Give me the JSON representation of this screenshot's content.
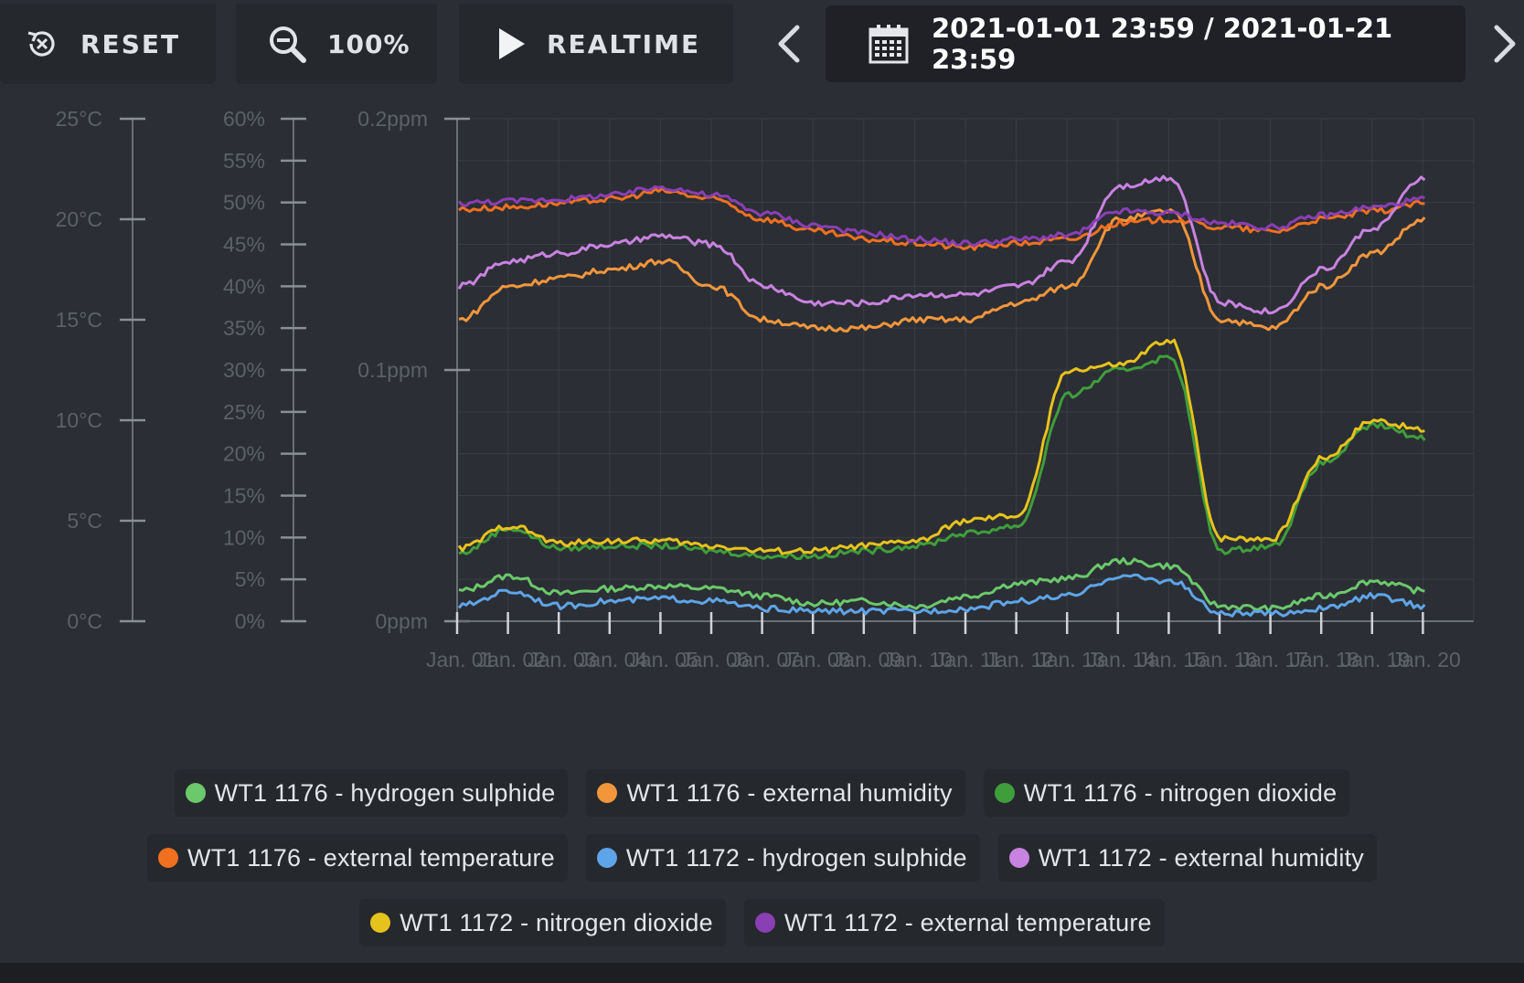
{
  "toolbar": {
    "reset_label": "RESET",
    "zoom_label": "100%",
    "realtime_label": "REALTIME",
    "date_range": "2021-01-01 23:59 / 2021-01-21 23:59"
  },
  "icons": {
    "reset": "reset-icon",
    "zoom": "zoom-out-icon",
    "play": "play-icon",
    "prev": "chevron-left-icon",
    "next": "chevron-right-icon",
    "calendar": "calendar-icon"
  },
  "chart_data": {
    "type": "line",
    "title": "",
    "grid": true,
    "legend_position": "bottom",
    "x": [
      "Jan. 01",
      "Jan. 02",
      "Jan. 03",
      "Jan. 04",
      "Jan. 05",
      "Jan. 06",
      "Jan. 07",
      "Jan. 08",
      "Jan. 09",
      "Jan. 10",
      "Jan. 11",
      "Jan. 12",
      "Jan. 13",
      "Jan. 14",
      "Jan. 15",
      "Jan. 16",
      "Jan. 17",
      "Jan. 18",
      "Jan. 19",
      "Jan. 20"
    ],
    "x_tick_labels": [
      "Jan. 01",
      "Jan. 02",
      "Jan. 03",
      "Jan. 04",
      "Jan. 05",
      "Jan. 06",
      "Jan. 07",
      "Jan. 08",
      "Jan. 09",
      "Jan. 10",
      "Jan. 11",
      "Jan. 12",
      "Jan. 13",
      "Jan. 14",
      "Jan. 15",
      "Jan. 16",
      "Jan. 17",
      "Jan. 18",
      "Jan. 19",
      "Jan. 20"
    ],
    "axes": [
      {
        "id": "temp",
        "unit": "°C",
        "ylim": [
          0,
          25
        ],
        "ticks": [
          "0°C",
          "5°C",
          "10°C",
          "15°C",
          "20°C",
          "25°C"
        ]
      },
      {
        "id": "humidity",
        "unit": "%",
        "ylim": [
          0,
          60
        ],
        "ticks": [
          "0%",
          "5%",
          "10%",
          "15%",
          "20%",
          "25%",
          "30%",
          "35%",
          "40%",
          "45%",
          "50%",
          "55%",
          "60%"
        ]
      },
      {
        "id": "ppm",
        "unit": "ppm",
        "ylim": [
          0,
          0.2
        ],
        "ticks": [
          "0ppm",
          "0.1ppm",
          "0.2ppm"
        ]
      }
    ],
    "series": [
      {
        "name": "WT1 1176 - hydrogen sulphide",
        "color": "#6bc86b",
        "axis": "ppm",
        "values": [
          0.012,
          0.018,
          0.011,
          0.013,
          0.014,
          0.013,
          0.01,
          0.007,
          0.008,
          0.006,
          0.01,
          0.015,
          0.017,
          0.024,
          0.022,
          0.006,
          0.005,
          0.01,
          0.016,
          0.012
        ]
      },
      {
        "name": "WT1 1176 - external humidity",
        "color": "#f2963c",
        "axis": "humidity",
        "values": [
          36,
          40,
          41,
          42,
          43,
          40,
          36,
          35,
          35,
          36,
          36,
          38,
          40,
          48,
          49,
          36,
          35,
          40,
          44,
          48
        ]
      },
      {
        "name": "WT1 1176 - nitrogen dioxide",
        "color": "#3f9e3a",
        "axis": "ppm",
        "values": [
          0.027,
          0.037,
          0.029,
          0.03,
          0.03,
          0.028,
          0.026,
          0.026,
          0.028,
          0.03,
          0.035,
          0.038,
          0.09,
          0.1,
          0.105,
          0.028,
          0.03,
          0.063,
          0.078,
          0.073
        ]
      },
      {
        "name": "WT1 1176 - external temperature",
        "color": "#f07020",
        "axis": "temp",
        "values": [
          20.5,
          20.6,
          20.8,
          21.0,
          21.4,
          21.0,
          20.0,
          19.4,
          19.0,
          18.8,
          18.6,
          18.8,
          19.0,
          19.8,
          20.0,
          19.6,
          19.4,
          20.0,
          20.4,
          20.8
        ]
      },
      {
        "name": "WT1 1172 - hydrogen sulphide",
        "color": "#5ea4e8",
        "axis": "ppm",
        "values": [
          0.006,
          0.012,
          0.006,
          0.008,
          0.009,
          0.008,
          0.005,
          0.004,
          0.004,
          0.004,
          0.005,
          0.008,
          0.01,
          0.018,
          0.016,
          0.003,
          0.003,
          0.005,
          0.01,
          0.006
        ]
      },
      {
        "name": "WT1 1172 - external humidity",
        "color": "#c882e0",
        "axis": "humidity",
        "values": [
          40,
          43,
          44,
          45,
          46,
          45,
          40,
          38,
          38,
          39,
          39,
          40,
          43,
          52,
          53,
          38,
          37,
          42,
          47,
          53
        ]
      },
      {
        "name": "WT1 1172 - nitrogen dioxide",
        "color": "#e6c21c",
        "axis": "ppm",
        "values": [
          0.029,
          0.038,
          0.031,
          0.032,
          0.032,
          0.03,
          0.028,
          0.028,
          0.03,
          0.032,
          0.04,
          0.042,
          0.1,
          0.102,
          0.112,
          0.033,
          0.033,
          0.065,
          0.08,
          0.076
        ]
      },
      {
        "name": "WT1 1172 - external temperature",
        "color": "#8a3fb5",
        "axis": "temp",
        "values": [
          20.8,
          20.9,
          21.0,
          21.2,
          21.6,
          21.2,
          20.3,
          19.7,
          19.3,
          19.0,
          18.8,
          19.0,
          19.2,
          20.4,
          20.3,
          19.8,
          19.6,
          20.2,
          20.6,
          21.0
        ]
      }
    ]
  }
}
